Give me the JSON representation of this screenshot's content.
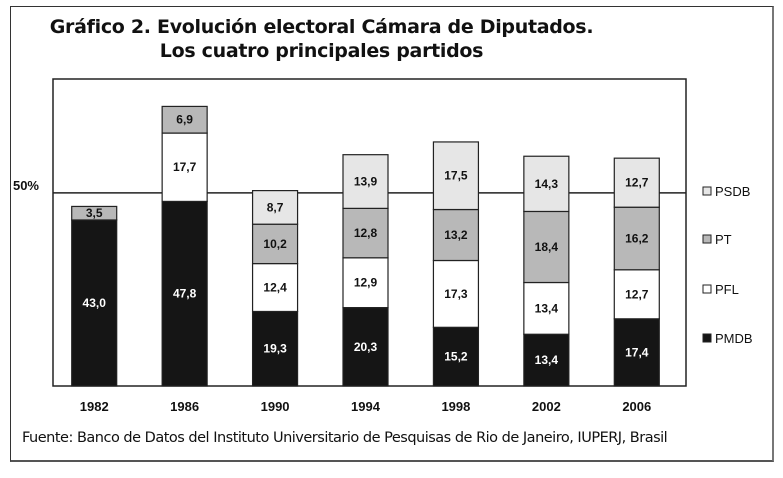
{
  "chart_data": {
    "type": "bar",
    "stacked": true,
    "title": "Gráfico 2. Evolución electoral Cámara de Diputados.",
    "subtitle": "Los cuatro principales partidos",
    "xlabel": "",
    "ylabel": "",
    "categories": [
      "1982",
      "1986",
      "1990",
      "1994",
      "1998",
      "2002",
      "2006"
    ],
    "reference_line": {
      "value": 50,
      "label": "50%"
    },
    "ylim": [
      0,
      79.5
    ],
    "decimal_separator": ",",
    "series": [
      {
        "name": "PMDB",
        "color": "#151515",
        "label_color": "#ffffff",
        "values": [
          43.0,
          47.8,
          19.3,
          20.3,
          15.2,
          13.4,
          17.4
        ]
      },
      {
        "name": "PFL",
        "color": "#ffffff",
        "label_color": "#111111",
        "values": [
          null,
          17.7,
          12.4,
          12.9,
          17.3,
          13.4,
          12.7
        ]
      },
      {
        "name": "PT",
        "color": "#b8b8b8",
        "label_color": "#111111",
        "values": [
          3.5,
          6.9,
          10.2,
          12.8,
          13.2,
          18.4,
          16.2
        ]
      },
      {
        "name": "PSDB",
        "color": "#e6e6e6",
        "label_color": "#111111",
        "values": [
          null,
          null,
          8.7,
          13.9,
          17.5,
          14.3,
          12.7
        ]
      }
    ],
    "legend": {
      "placement": "right",
      "order": [
        "PSDB",
        "PT",
        "PFL",
        "PMDB"
      ]
    },
    "grid": false
  },
  "source": "Fuente: Banco de Datos del Instituto Universitario de Pesquisas de Rio de Janeiro, IUPERJ, Brasil"
}
